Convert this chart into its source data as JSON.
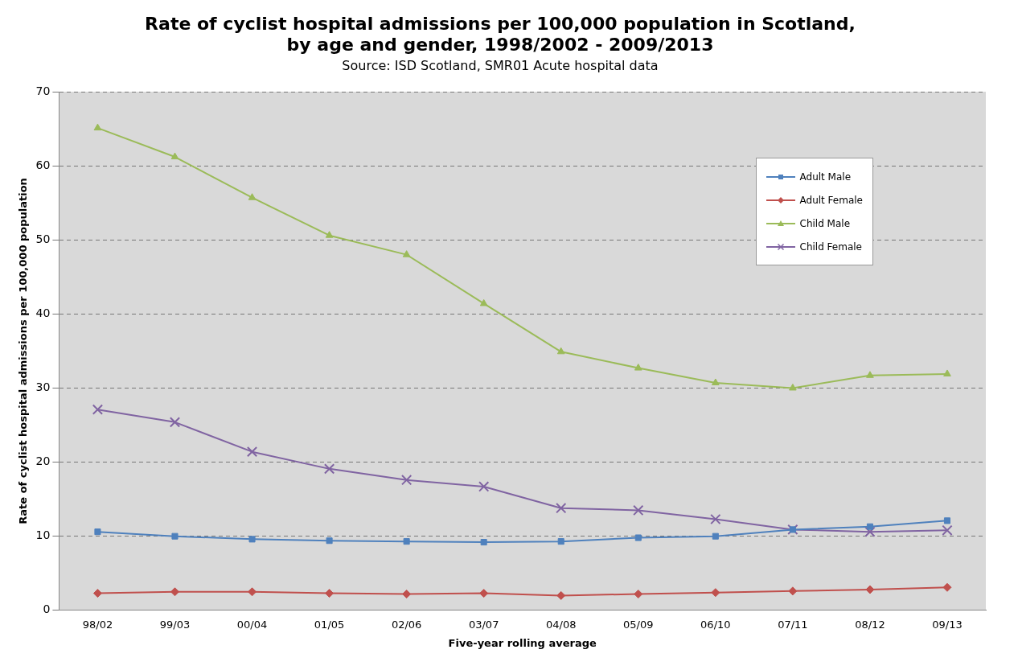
{
  "chart_data": {
    "type": "line",
    "title": "Rate of cyclist hospital admissions per 100,000 population in Scotland, by age and gender, 1998/2002 - 2009/2013",
    "subtitle": "Source: ISD Scotland, SMR01 Acute hospital data",
    "xlabel": "Five-year rolling average",
    "ylabel": "Rate of cyclist hospital admissions per 100,000 population",
    "categories": [
      "98/02",
      "99/03",
      "00/04",
      "01/05",
      "02/06",
      "03/07",
      "04/08",
      "05/09",
      "06/10",
      "07/11",
      "08/12",
      "09/13"
    ],
    "series": [
      {
        "name": "Adult Male",
        "color": "#4f81bd",
        "marker": "square",
        "values": [
          10.6,
          10.0,
          9.6,
          9.4,
          9.3,
          9.2,
          9.3,
          9.8,
          10.0,
          10.9,
          11.3,
          12.1
        ]
      },
      {
        "name": "Adult Female",
        "color": "#c0504d",
        "marker": "diamond",
        "values": [
          2.3,
          2.5,
          2.5,
          2.3,
          2.2,
          2.3,
          2.0,
          2.2,
          2.4,
          2.6,
          2.8,
          3.1
        ]
      },
      {
        "name": "Child Male",
        "color": "#9bbb59",
        "marker": "triangle",
        "values": [
          65.1,
          61.2,
          55.7,
          50.6,
          48.0,
          41.4,
          34.9,
          32.7,
          30.7,
          30.0,
          31.7,
          31.9
        ]
      },
      {
        "name": "Child Female",
        "color": "#8064a2",
        "marker": "cross",
        "values": [
          27.1,
          25.4,
          21.4,
          19.1,
          17.6,
          16.7,
          13.8,
          13.5,
          12.3,
          10.9,
          10.6,
          10.8
        ]
      }
    ],
    "ylim": [
      0,
      70
    ],
    "yticks": [
      0,
      10,
      20,
      30,
      40,
      50,
      60,
      70
    ],
    "grid": "y",
    "legend": "top right",
    "line_style": "solid"
  }
}
